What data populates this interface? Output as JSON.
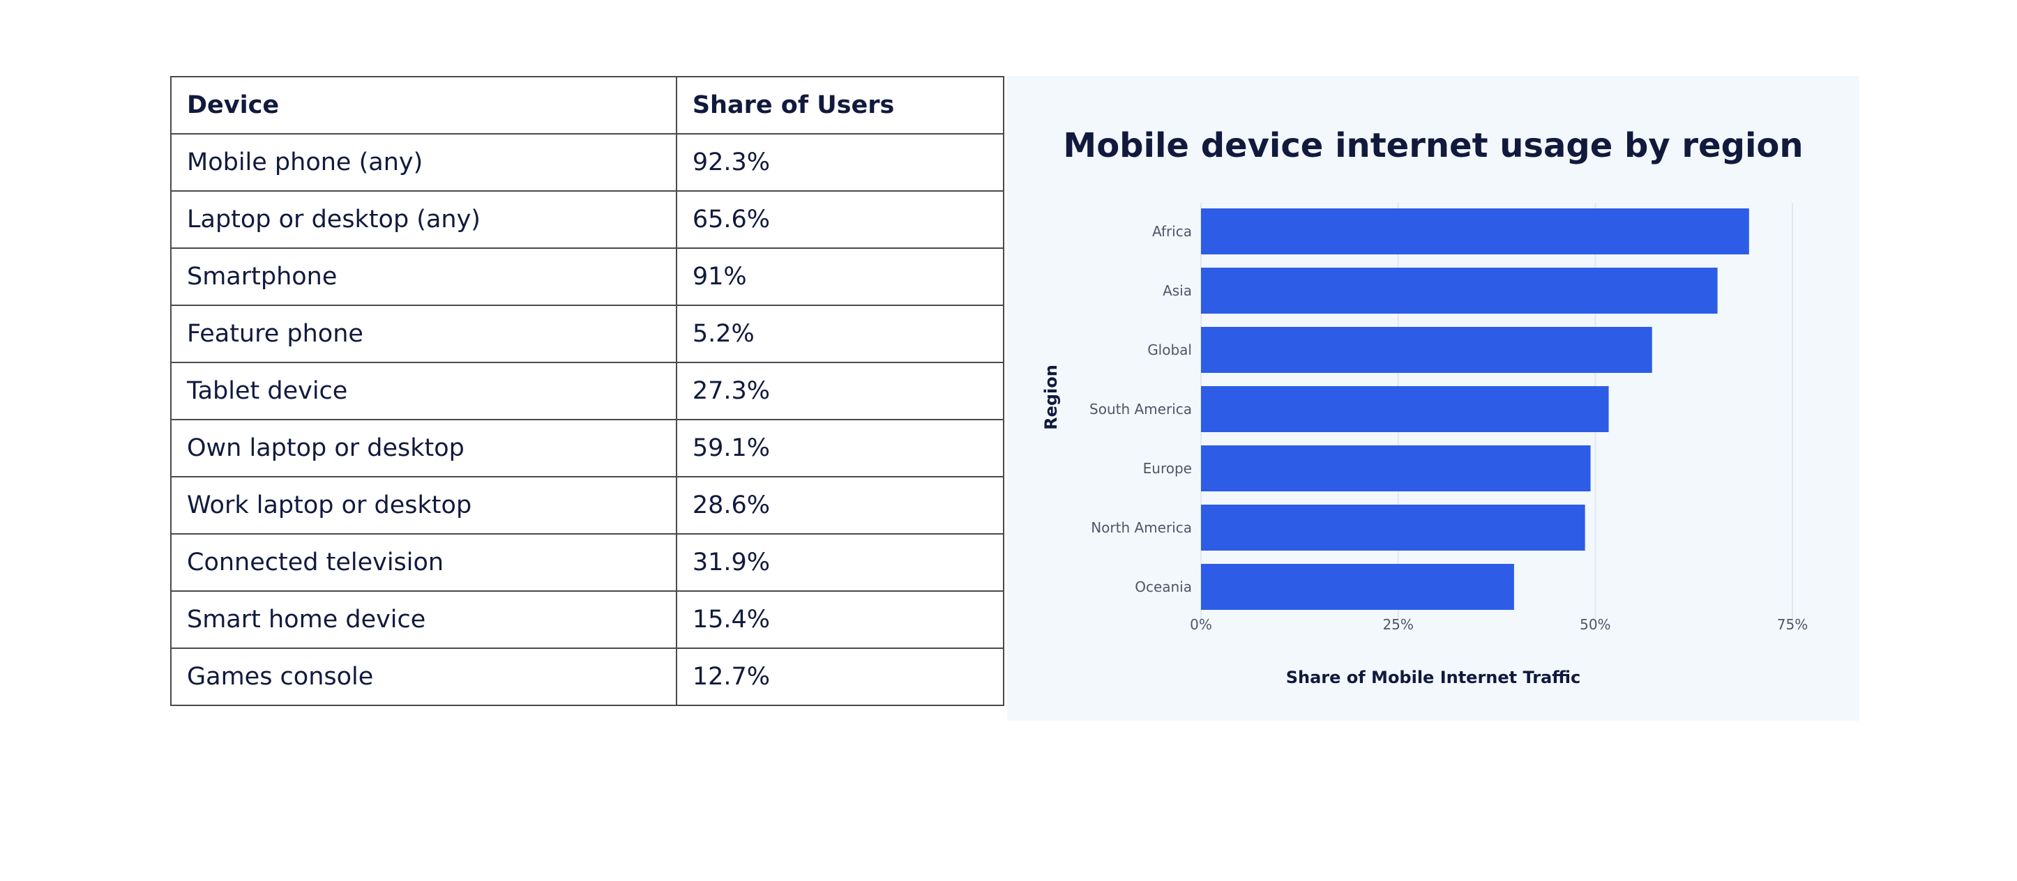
{
  "table": {
    "headers": [
      "Device",
      "Share of Users"
    ],
    "rows": [
      [
        "Mobile phone (any)",
        "92.3%"
      ],
      [
        "Laptop or desktop (any)",
        "65.6%"
      ],
      [
        "Smartphone",
        "91%"
      ],
      [
        "Feature phone",
        "5.2%"
      ],
      [
        "Tablet device",
        "27.3%"
      ],
      [
        "Own laptop or desktop",
        "59.1%"
      ],
      [
        "Work laptop or desktop",
        "28.6%"
      ],
      [
        "Connected television",
        "31.9%"
      ],
      [
        "Smart home device",
        "15.4%"
      ],
      [
        "Games console",
        "12.7%"
      ]
    ]
  },
  "chart_data": {
    "type": "bar",
    "orientation": "horizontal",
    "title": "Mobile device internet usage by region",
    "xlabel": "Share of Mobile Internet Traffic",
    "ylabel": "Region",
    "categories": [
      "Africa",
      "Asia",
      "Global",
      "South America",
      "Europe",
      "North America",
      "Oceania"
    ],
    "values": [
      69.5,
      65.5,
      57.2,
      51.7,
      49.4,
      48.7,
      39.7
    ],
    "xlim": [
      0,
      75
    ],
    "xticks": [
      0,
      25,
      50,
      75
    ],
    "xtick_labels": [
      "0%",
      "25%",
      "50%",
      "75%"
    ],
    "grid": "vertical",
    "colors": {
      "bar": "#2d5de6",
      "background": "#f3f8fd"
    }
  }
}
